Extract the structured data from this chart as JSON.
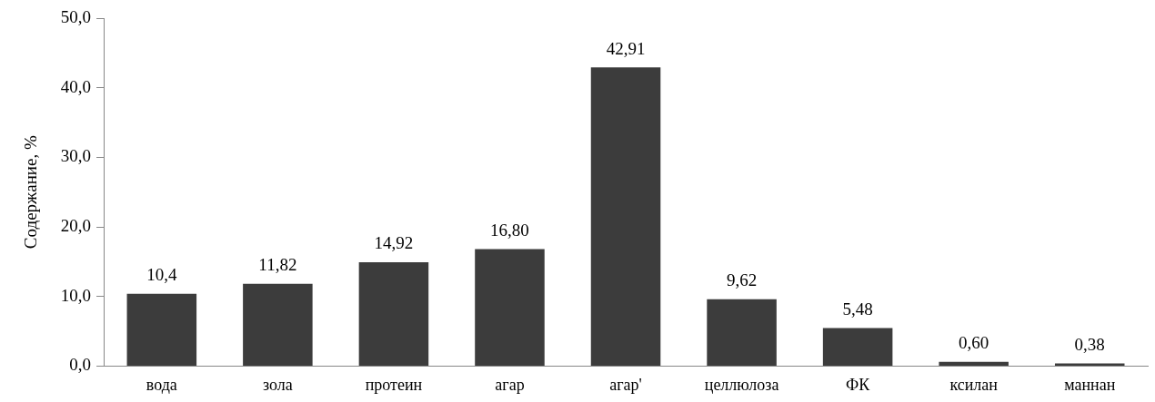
{
  "chart_data": {
    "type": "bar",
    "ylabel": "Содержание, %",
    "categories": [
      "вода",
      "зола",
      "протеин",
      "агар",
      "агар'",
      "целлюлоза",
      "ФК",
      "ксилан",
      "маннан"
    ],
    "values": [
      10.4,
      11.82,
      14.92,
      16.8,
      42.91,
      9.62,
      5.48,
      0.6,
      0.38
    ],
    "value_labels": [
      "10,4",
      "11,82",
      "14,92",
      "16,80",
      "42,91",
      "9,62",
      "5,48",
      "0,60",
      "0,38"
    ],
    "color": "#3c3c3c",
    "ylim": [
      0,
      50
    ],
    "yticks": [
      {
        "value": 0,
        "label": "0,0"
      },
      {
        "value": 10,
        "label": "10,0"
      },
      {
        "value": 20,
        "label": "20,0"
      },
      {
        "value": 30,
        "label": "30,0"
      },
      {
        "value": 40,
        "label": "40,0"
      },
      {
        "value": 50,
        "label": "50,0"
      }
    ],
    "grid": false,
    "legend": false
  }
}
